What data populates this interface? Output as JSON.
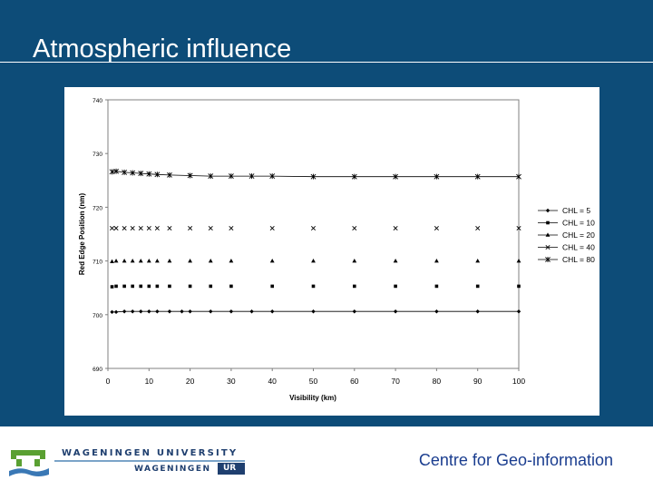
{
  "slide": {
    "title": "Atmospheric influence",
    "footer_text": "Centre for Geo-information"
  },
  "logo": {
    "line1": "WAGENINGEN UNIVERSITY",
    "line2": "WAGENINGEN",
    "line2_box": "UR"
  },
  "colors": {
    "slide_background": "#0d4c78",
    "title_text": "#ffffff",
    "footer_text": "#1a3d8f",
    "logo_green": "#5aa032",
    "logo_blue": "#1f3f6f"
  },
  "chart_data": {
    "type": "line",
    "title": "",
    "xlabel": "Visibility (km)",
    "ylabel": "Red Edge Position (nm)",
    "xlim": [
      0,
      100
    ],
    "ylim": [
      690,
      740
    ],
    "x_ticks": [
      "0",
      "10",
      "20",
      "30",
      "40",
      "50",
      "60",
      "70",
      "80",
      "90",
      "100"
    ],
    "y_ticks": [
      "690",
      "700",
      "710",
      "720",
      "730",
      "740"
    ],
    "grid": false,
    "legend_position": "right",
    "series": [
      {
        "name": "CHL = 5",
        "marker": "diamond",
        "connected": true,
        "x": [
          1,
          2,
          4,
          6,
          8,
          10,
          12,
          15,
          18,
          20,
          25,
          30,
          35,
          40,
          50,
          60,
          70,
          80,
          90,
          100
        ],
        "y": [
          700.5,
          700.5,
          700.6,
          700.6,
          700.6,
          700.6,
          700.6,
          700.6,
          700.6,
          700.6,
          700.6,
          700.6,
          700.6,
          700.6,
          700.6,
          700.6,
          700.6,
          700.6,
          700.6,
          700.6
        ]
      },
      {
        "name": "CHL = 10",
        "marker": "square",
        "connected": false,
        "x": [
          1,
          2,
          4,
          6,
          8,
          10,
          12,
          15,
          20,
          25,
          30,
          40,
          50,
          60,
          70,
          80,
          90,
          100
        ],
        "y": [
          705.2,
          705.3,
          705.3,
          705.3,
          705.3,
          705.3,
          705.3,
          705.3,
          705.3,
          705.3,
          705.3,
          705.3,
          705.3,
          705.3,
          705.3,
          705.3,
          705.3,
          705.3
        ]
      },
      {
        "name": "CHL = 20",
        "marker": "triangle",
        "connected": false,
        "x": [
          1,
          2,
          4,
          6,
          8,
          10,
          12,
          15,
          20,
          25,
          30,
          40,
          50,
          60,
          70,
          80,
          90,
          100
        ],
        "y": [
          709.9,
          710.0,
          710.0,
          710.0,
          710.0,
          710.0,
          710.0,
          710.0,
          710.0,
          710.0,
          710.0,
          710.0,
          710.0,
          710.0,
          710.0,
          710.0,
          710.0,
          710.0
        ]
      },
      {
        "name": "CHL = 40",
        "marker": "x",
        "connected": false,
        "x": [
          1,
          2,
          4,
          6,
          8,
          10,
          12,
          15,
          20,
          25,
          30,
          40,
          50,
          60,
          70,
          80,
          90,
          100
        ],
        "y": [
          716.1,
          716.1,
          716.1,
          716.1,
          716.1,
          716.1,
          716.1,
          716.1,
          716.1,
          716.1,
          716.1,
          716.1,
          716.1,
          716.1,
          716.1,
          716.1,
          716.1,
          716.1
        ]
      },
      {
        "name": "CHL = 80",
        "marker": "star",
        "connected": true,
        "x": [
          1,
          2,
          4,
          6,
          8,
          10,
          12,
          15,
          20,
          25,
          30,
          35,
          40,
          50,
          60,
          70,
          80,
          90,
          100
        ],
        "y": [
          726.6,
          726.7,
          726.5,
          726.4,
          726.3,
          726.2,
          726.1,
          726.0,
          725.9,
          725.8,
          725.8,
          725.8,
          725.8,
          725.7,
          725.7,
          725.7,
          725.7,
          725.7,
          725.7
        ]
      }
    ]
  }
}
